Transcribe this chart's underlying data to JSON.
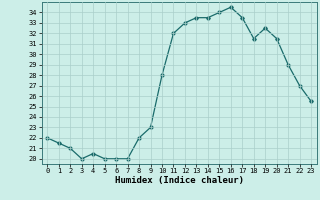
{
  "xlabel": "Humidex (Indice chaleur)",
  "x": [
    0,
    1,
    2,
    3,
    4,
    5,
    6,
    7,
    8,
    9,
    10,
    11,
    12,
    13,
    14,
    15,
    16,
    17,
    18,
    19,
    20,
    21,
    22,
    23
  ],
  "y": [
    22,
    21.5,
    21,
    20,
    20.5,
    20,
    20,
    20,
    22,
    23,
    28,
    32,
    33,
    33.5,
    33.5,
    34,
    34.5,
    33.5,
    31.5,
    32.5,
    31.5,
    29,
    27,
    25.5
  ],
  "ylim": [
    19.5,
    35.0
  ],
  "yticks": [
    20,
    21,
    22,
    23,
    24,
    25,
    26,
    27,
    28,
    29,
    30,
    31,
    32,
    33,
    34
  ],
  "line_color": "#1a6b6b",
  "marker": "D",
  "marker_size": 1.8,
  "bg_color": "#cceee8",
  "grid_color": "#aacfcb",
  "line_width": 0.9,
  "tick_fontsize": 5.0,
  "xlabel_fontsize": 6.5
}
